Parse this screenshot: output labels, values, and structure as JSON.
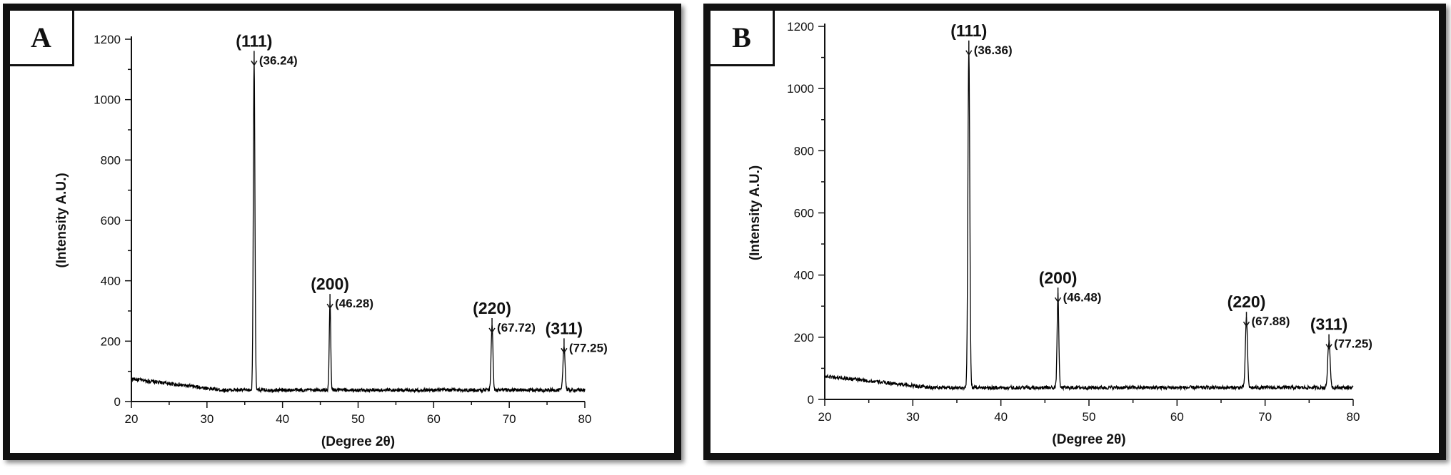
{
  "panels": [
    {
      "letter": "A",
      "colors": {
        "line": "#000000",
        "frame": "#111111"
      }
    },
    {
      "letter": "B",
      "colors": {
        "line": "#000000",
        "frame": "#111111"
      }
    }
  ],
  "chart_data": [
    {
      "type": "line",
      "panel": "A",
      "xlabel": "(Degree 2θ)",
      "ylabel": "(Intensity A.U.)",
      "xlim": [
        20,
        80
      ],
      "ylim": [
        0,
        1200
      ],
      "xticks": [
        20,
        30,
        40,
        50,
        60,
        70,
        80
      ],
      "yticks": [
        0,
        200,
        400,
        600,
        800,
        1000,
        1200
      ],
      "grid": false,
      "background": {
        "start": 75,
        "end": 38,
        "noise": 6
      },
      "peaks": [
        {
          "position": 36.24,
          "height": 1100,
          "width": 0.22,
          "hkl": "(111)",
          "label": "(36.24)"
        },
        {
          "position": 46.28,
          "height": 295,
          "width": 0.2,
          "hkl": "(200)",
          "label": "(46.28)"
        },
        {
          "position": 67.72,
          "height": 215,
          "width": 0.25,
          "hkl": "(220)",
          "label": "(67.72)"
        },
        {
          "position": 77.25,
          "height": 148,
          "width": 0.28,
          "hkl": "(311)",
          "label": "(77.25)"
        }
      ]
    },
    {
      "type": "line",
      "panel": "B",
      "xlabel": "(Degree 2θ)",
      "ylabel": "(Intensity A.U.)",
      "xlim": [
        20,
        80
      ],
      "ylim": [
        0,
        1200
      ],
      "xticks": [
        20,
        30,
        40,
        50,
        60,
        70,
        80
      ],
      "yticks": [
        0,
        200,
        400,
        600,
        800,
        1000,
        1200
      ],
      "grid": false,
      "background": {
        "start": 75,
        "end": 38,
        "noise": 6
      },
      "peaks": [
        {
          "position": 36.36,
          "height": 1095,
          "width": 0.22,
          "hkl": "(111)",
          "label": "(36.36)"
        },
        {
          "position": 46.48,
          "height": 300,
          "width": 0.2,
          "hkl": "(200)",
          "label": "(46.48)"
        },
        {
          "position": 67.88,
          "height": 222,
          "width": 0.25,
          "hkl": "(220)",
          "label": "(67.88)"
        },
        {
          "position": 77.25,
          "height": 150,
          "width": 0.28,
          "hkl": "(311)",
          "label": "(77.25)"
        }
      ]
    }
  ]
}
